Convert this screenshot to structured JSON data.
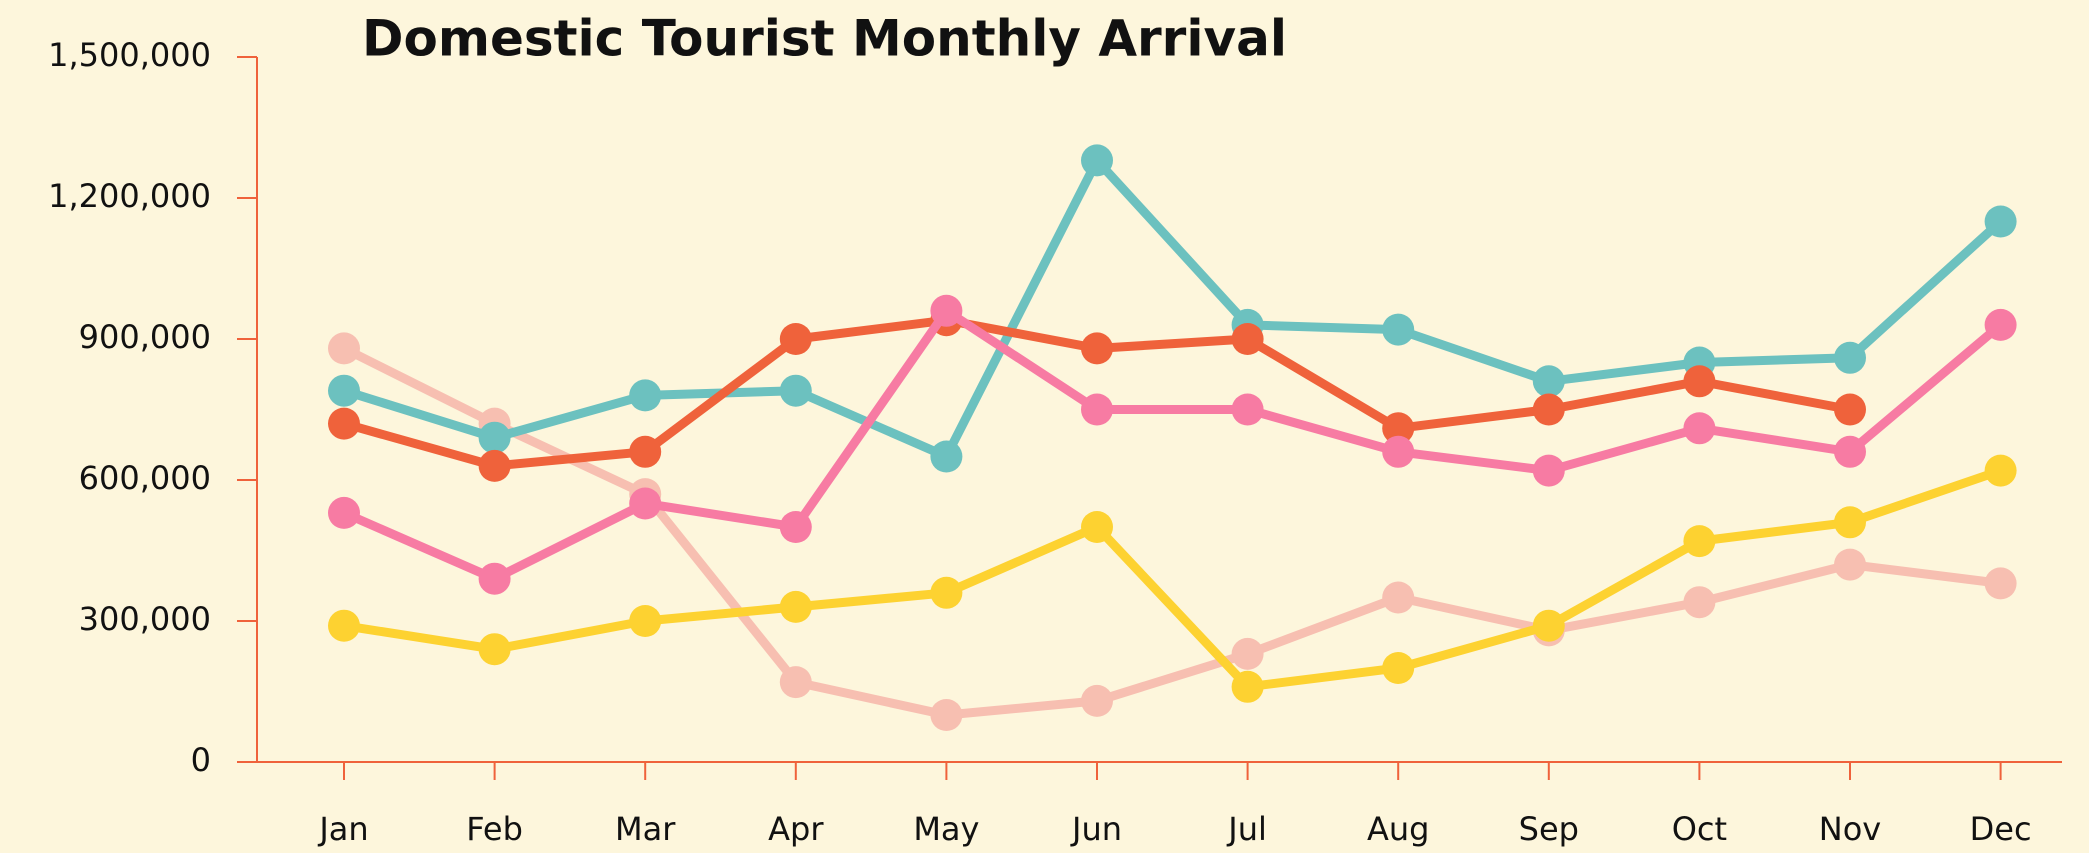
{
  "chart_data": {
    "type": "line",
    "title": "Domestic Tourist Monthly Arrival",
    "categories": [
      "Jan",
      "Feb",
      "Mar",
      "Apr",
      "May",
      "Jun",
      "Jul",
      "Aug",
      "Sep",
      "Oct",
      "Nov",
      "Dec"
    ],
    "series": [
      {
        "color": "#f7bfb1",
        "values": [
          880000,
          720000,
          570000,
          170000,
          100000,
          130000,
          230000,
          350000,
          280000,
          340000,
          420000,
          380000
        ]
      },
      {
        "color": "#6cc1bf",
        "values": [
          790000,
          690000,
          780000,
          790000,
          650000,
          1280000,
          930000,
          920000,
          810000,
          850000,
          860000,
          1150000
        ]
      },
      {
        "color": "#ef623b",
        "values": [
          720000,
          630000,
          660000,
          900000,
          940000,
          880000,
          900000,
          710000,
          750000,
          810000,
          750000,
          null
        ]
      },
      {
        "color": "#f77ba3",
        "values": [
          530000,
          390000,
          550000,
          500000,
          960000,
          750000,
          750000,
          660000,
          620000,
          710000,
          660000,
          930000
        ]
      },
      {
        "color": "#fdd231",
        "values": [
          290000,
          240000,
          300000,
          330000,
          360000,
          500000,
          160000,
          200000,
          290000,
          470000,
          510000,
          620000
        ]
      }
    ],
    "ylim": [
      0,
      1500000
    ],
    "yticks": [
      0,
      {
        "value": 300000,
        "label": "300,000"
      },
      {
        "value": 600000,
        "label": "600,000"
      },
      {
        "value": 900000,
        "label": "900,000"
      },
      {
        "value": 1200000,
        "label": "1,200,000"
      },
      {
        "value": 1500000,
        "label": "1,500,000"
      }
    ],
    "axis_color": "#ef623b"
  }
}
